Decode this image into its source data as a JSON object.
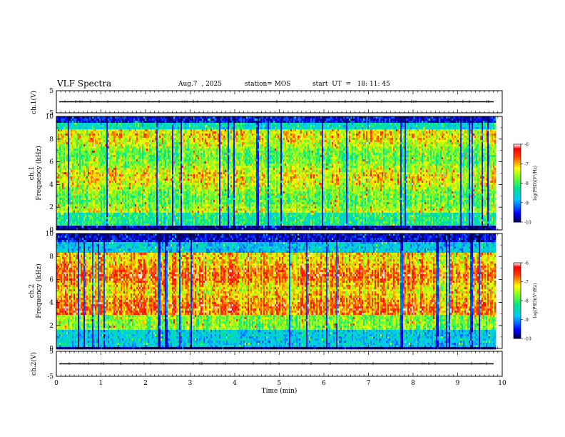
{
  "header": {
    "title": "VLF Spectra",
    "date": "Aug.7  , 2025",
    "station": "station= MOS",
    "start_ut": "start  UT  =   18: 11: 45"
  },
  "panels": {
    "wave1_label": "ch.1(V)",
    "spec1_label": "ch.1\nFrequency (kHz)",
    "spec2_label": "ch.2\nFrequency (kHz)",
    "wave2_label": "ch.2(V)"
  },
  "colorbar": {
    "label": "log(PSD)(V²/Hz)",
    "ticks": [
      -6,
      -7,
      -8,
      -9,
      -10
    ]
  },
  "colors": {
    "scale": [
      "#000033",
      "#0000ff",
      "#00c8ff",
      "#00ff80",
      "#ffff00",
      "#ff0000",
      "#ffffff"
    ]
  },
  "chart_data": [
    {
      "type": "line",
      "name": "ch1-waveform",
      "ylabel": "ch.1(V)",
      "ylim": [
        -5,
        5
      ],
      "yticks": [
        5,
        -5
      ],
      "xlim": [
        0,
        10
      ],
      "baseline": 0
    },
    {
      "type": "heatmap",
      "name": "ch1-spectrogram",
      "ylabel": "Frequency (kHz)",
      "ylim": [
        0,
        10
      ],
      "yticks": [
        0,
        2,
        4,
        6,
        8,
        10
      ],
      "xlim": [
        0,
        10
      ],
      "data_end_min": 9.85,
      "zlim": [
        -10,
        -6
      ],
      "zlabel": "log(PSD)(V²/Hz)"
    },
    {
      "type": "heatmap",
      "name": "ch2-spectrogram",
      "ylabel": "Frequency (kHz)",
      "ylim": [
        0,
        10
      ],
      "yticks": [
        0,
        2,
        4,
        6,
        8,
        10
      ],
      "xlim": [
        0,
        10
      ],
      "data_end_min": 9.85,
      "zlim": [
        -10,
        -6
      ],
      "zlabel": "log(PSD)(V²/Hz)"
    },
    {
      "type": "line",
      "name": "ch2-waveform",
      "ylabel": "ch.2(V)",
      "ylim": [
        -5,
        5
      ],
      "yticks": [
        5,
        -5
      ],
      "xlim": [
        0,
        10
      ],
      "baseline": 0,
      "xlabel": "Time  (min)",
      "xticks": [
        0,
        1,
        2,
        3,
        4,
        5,
        6,
        7,
        8,
        9,
        10
      ]
    }
  ]
}
